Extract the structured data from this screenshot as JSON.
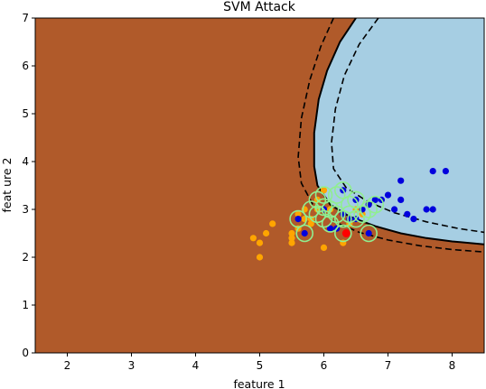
{
  "chart_data": {
    "type": "scatter",
    "title": "SVM Attack",
    "xlabel": "feature 1",
    "ylabel": "feat ure 2",
    "xlim": [
      1.5,
      8.5
    ],
    "ylim": [
      0,
      7
    ],
    "xticks": [
      "2",
      "3",
      "4",
      "5",
      "6",
      "7",
      "8"
    ],
    "yticks": [
      "0",
      "1",
      "2",
      "3",
      "4",
      "5",
      "6",
      "7"
    ],
    "colors": {
      "region_outside": "#b05a2a",
      "region_inside": "#a6cee3",
      "boundary": "#000000",
      "class_a": "#0000dd",
      "class_b": "#ffa500",
      "attack_point": "#ff0000",
      "support_ring": "#90ee90"
    },
    "decision_boundary": {
      "x": [
        6.5,
        6.25,
        6.05,
        5.92,
        5.85,
        5.85,
        5.9,
        6.1,
        6.4,
        6.8,
        7.2,
        7.6,
        8.0,
        8.5
      ],
      "y": [
        7.0,
        6.5,
        5.9,
        5.3,
        4.6,
        3.9,
        3.5,
        3.1,
        2.85,
        2.65,
        2.5,
        2.4,
        2.33,
        2.27
      ]
    },
    "margin_outer": {
      "x": [
        6.15,
        5.95,
        5.78,
        5.65,
        5.6,
        5.65,
        5.85,
        6.15,
        6.55,
        7.0,
        7.5,
        8.0,
        8.5
      ],
      "y": [
        7.0,
        6.4,
        5.7,
        4.9,
        4.1,
        3.55,
        3.05,
        2.75,
        2.52,
        2.36,
        2.24,
        2.16,
        2.11
      ]
    },
    "margin_inner": {
      "x": [
        6.85,
        6.55,
        6.32,
        6.18,
        6.12,
        6.15,
        6.35,
        6.7,
        7.1,
        7.6,
        8.1,
        8.5
      ],
      "y": [
        7.0,
        6.45,
        5.8,
        5.1,
        4.4,
        3.85,
        3.45,
        3.15,
        2.93,
        2.74,
        2.6,
        2.52
      ]
    },
    "series": [
      {
        "role": "class_a",
        "x": [
          5.7,
          5.6,
          6.2,
          6.4,
          6.5,
          6.3,
          6.6,
          6.7,
          6.8,
          6.9,
          7.0,
          7.1,
          7.2,
          7.2,
          7.3,
          7.4,
          7.6,
          7.7,
          7.7,
          7.9,
          6.1,
          6.0,
          6.7,
          6.5,
          6.3
        ],
        "y": [
          2.5,
          2.8,
          2.6,
          2.8,
          3.2,
          3.4,
          3.0,
          3.1,
          3.2,
          3.2,
          3.3,
          3.0,
          3.2,
          3.6,
          2.9,
          2.8,
          3.0,
          3.0,
          3.8,
          3.8,
          2.6,
          3.0,
          2.5,
          2.8,
          2.9
        ]
      },
      {
        "role": "class_b",
        "x": [
          4.9,
          5.0,
          5.0,
          5.1,
          5.2,
          5.5,
          5.5,
          5.6,
          5.6,
          5.7,
          5.8,
          5.8,
          5.9,
          6.0,
          6.0,
          6.1,
          6.3,
          6.4,
          6.5,
          6.6,
          6.7,
          5.7,
          5.5,
          5.9
        ],
        "y": [
          2.4,
          2.3,
          2.0,
          2.5,
          2.7,
          2.3,
          2.4,
          2.6,
          2.9,
          3.0,
          2.7,
          2.8,
          3.0,
          2.2,
          3.4,
          3.0,
          2.3,
          2.7,
          3.0,
          2.9,
          3.1,
          2.8,
          2.5,
          3.2
        ]
      },
      {
        "role": "attack_point",
        "x": [
          6.35
        ],
        "y": [
          2.5
        ]
      },
      {
        "role": "support_vectors",
        "x": [
          5.6,
          5.7,
          5.8,
          5.9,
          5.9,
          6.0,
          6.0,
          6.1,
          6.1,
          6.2,
          6.2,
          6.3,
          6.3,
          6.4,
          6.4,
          6.5,
          6.5,
          6.6,
          6.7,
          6.7,
          6.8,
          6.3,
          6.0
        ],
        "y": [
          2.8,
          2.5,
          3.0,
          2.9,
          3.2,
          2.8,
          3.3,
          2.7,
          3.0,
          2.9,
          3.3,
          2.5,
          2.8,
          3.1,
          2.9,
          3.2,
          2.8,
          2.9,
          3.0,
          2.5,
          3.1,
          3.4,
          3.05
        ]
      }
    ]
  }
}
